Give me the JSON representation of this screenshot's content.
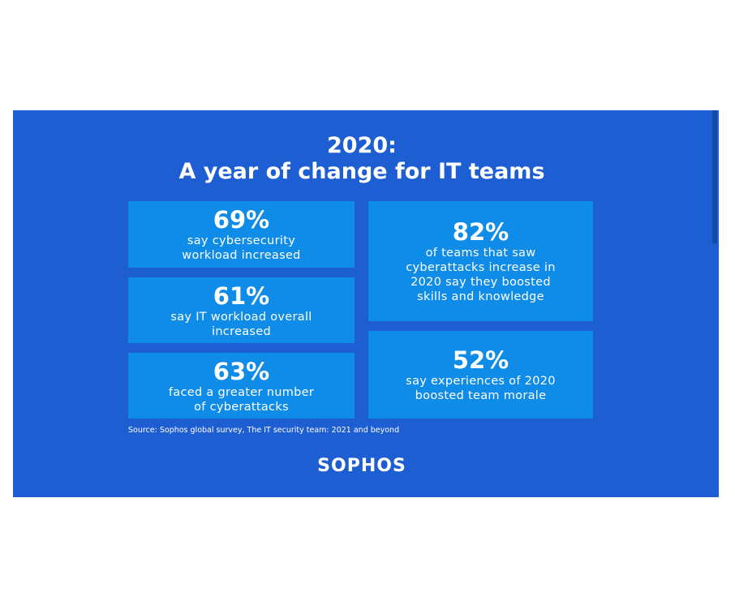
{
  "header": {
    "title_lines": [
      "2020:",
      "A year of change for IT teams"
    ]
  },
  "cards": [
    {
      "value": "69%",
      "lines": [
        "say cybersecurity",
        "workload increased"
      ]
    },
    {
      "value": "61%",
      "lines": [
        "say IT workload overall",
        "increased"
      ]
    },
    {
      "value": "63%",
      "lines": [
        "faced a greater number",
        "of cyberattacks"
      ]
    },
    {
      "value": "82%",
      "lines": [
        "of teams that saw",
        "cyberattacks increase in",
        "2020 say they boosted",
        "skills and knowledge"
      ]
    },
    {
      "value": "52%",
      "lines": [
        "say experiences of 2020",
        "boosted team morale"
      ]
    }
  ],
  "source": "Source: Sophos global survey, The IT security team: 2021 and beyond",
  "logo": "SOPHOS"
}
